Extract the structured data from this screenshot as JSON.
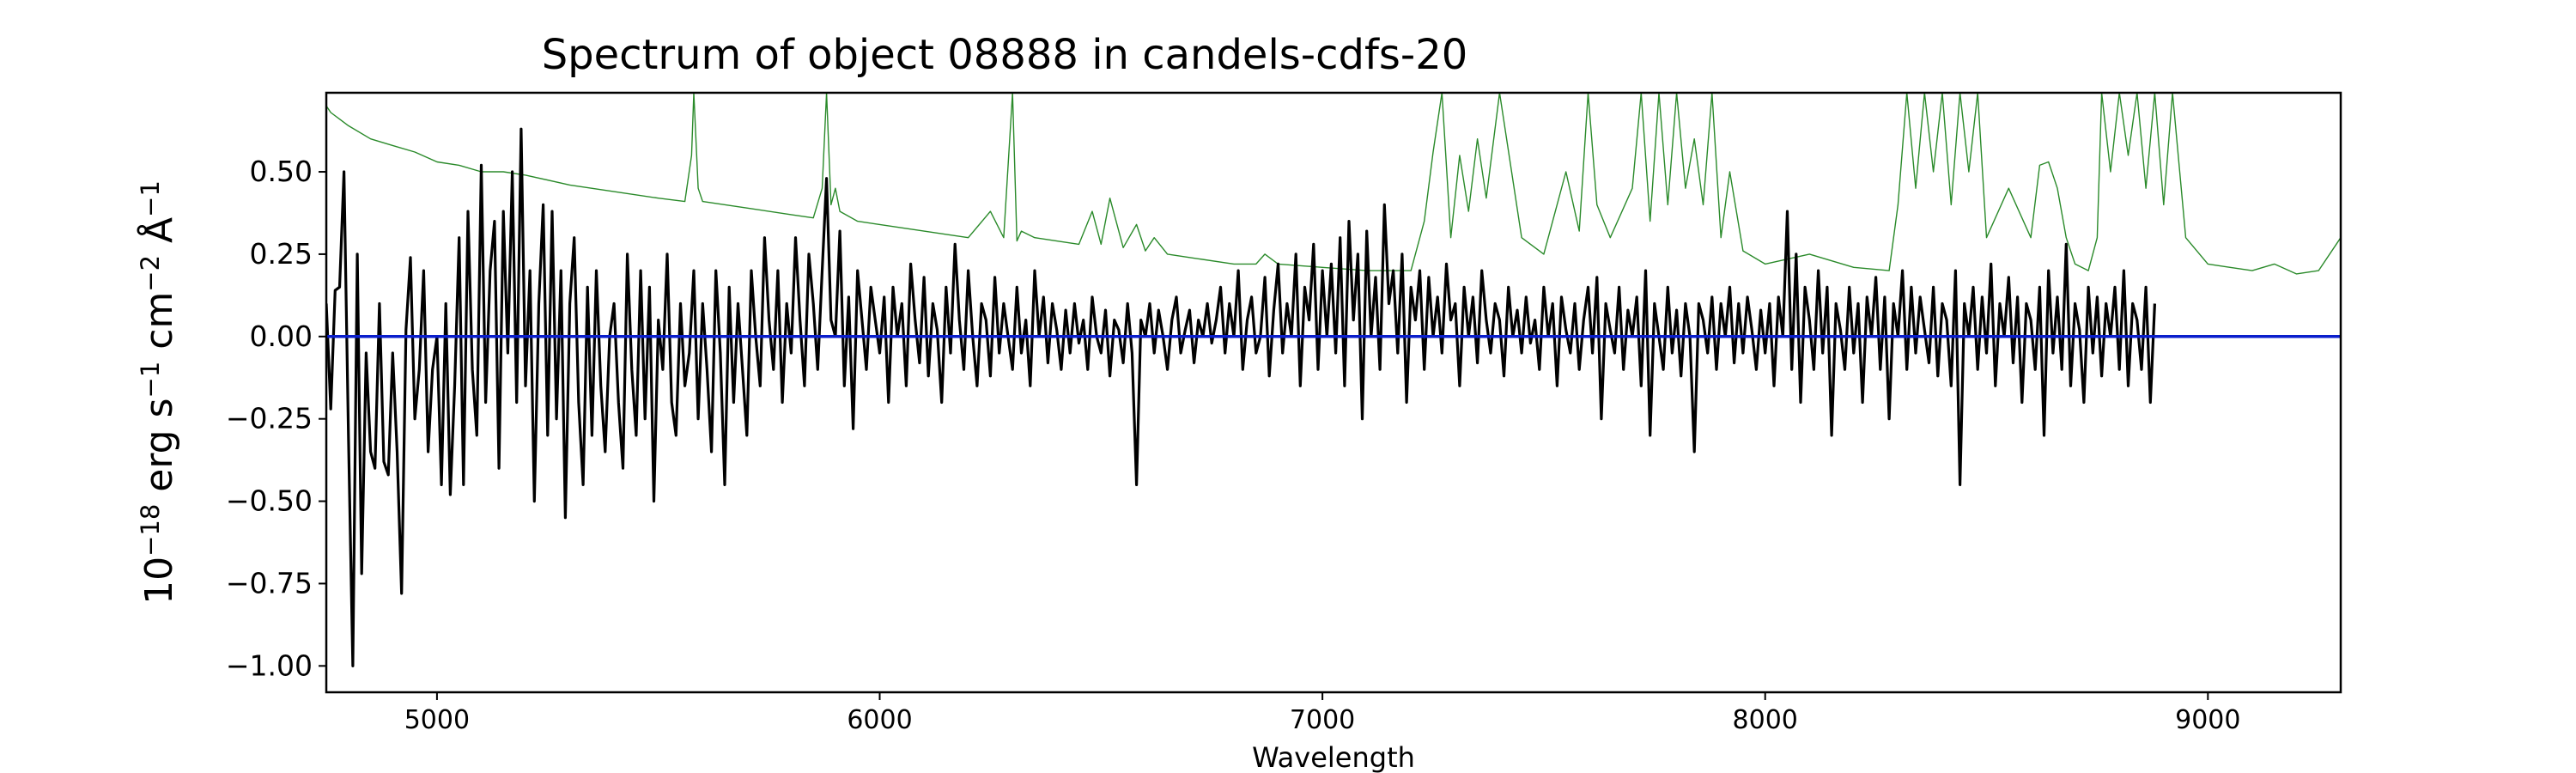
{
  "chart_data": {
    "type": "line",
    "title": "Spectrum of object 08888 in candels-cdfs-20",
    "xlabel": "Wavelength",
    "ylabel": "10^-18 erg s^-1 cm^-2 Å^-1",
    "ylabel_parts": {
      "base": "10",
      "exp_a": "−18",
      "unit_erg": " erg s",
      "exp_b": "−1",
      "unit_cm": " cm",
      "exp_c": "−2",
      "unit_angstrom": " Å",
      "exp_d": "−1"
    },
    "xlim": [
      4750,
      9300
    ],
    "ylim": [
      -1.08,
      0.74
    ],
    "xticks": [
      5000,
      6000,
      7000,
      8000,
      9000
    ],
    "xtick_labels": [
      "5000",
      "6000",
      "7000",
      "8000",
      "9000"
    ],
    "yticks": [
      -1.0,
      -0.75,
      -0.5,
      -0.25,
      0.0,
      0.25,
      0.5
    ],
    "ytick_labels": [
      "−1.00",
      "−0.75",
      "−0.50",
      "−0.25",
      "0.00",
      "0.25",
      "0.50"
    ],
    "grid": false,
    "legend": "none",
    "series": [
      {
        "role": "contamination",
        "color": "#2a8a2a",
        "x": [
          4750,
          4760,
          4780,
          4800,
          4850,
          4900,
          4950,
          5000,
          5050,
          5100,
          5150,
          5200,
          5300,
          5400,
          5500,
          5560,
          5575,
          5580,
          5590,
          5600,
          5700,
          5800,
          5850,
          5870,
          5880,
          5890,
          5900,
          5910,
          5950,
          6000,
          6100,
          6200,
          6250,
          6280,
          6300,
          6310,
          6320,
          6350,
          6400,
          6450,
          6480,
          6500,
          6520,
          6550,
          6580,
          6600,
          6620,
          6650,
          6700,
          6800,
          6850,
          6870,
          6900,
          7000,
          7100,
          7200,
          7230,
          7250,
          7270,
          7290,
          7310,
          7330,
          7350,
          7370,
          7400,
          7450,
          7500,
          7550,
          7580,
          7600,
          7620,
          7650,
          7700,
          7720,
          7740,
          7760,
          7780,
          7800,
          7820,
          7840,
          7860,
          7880,
          7900,
          7920,
          7950,
          8000,
          8100,
          8200,
          8280,
          8300,
          8320,
          8340,
          8360,
          8380,
          8400,
          8420,
          8440,
          8460,
          8480,
          8500,
          8550,
          8600,
          8620,
          8640,
          8660,
          8680,
          8700,
          8730,
          8750,
          8760,
          8780,
          8800,
          8820,
          8840,
          8860,
          8880,
          8900,
          8920,
          8950,
          9000,
          9050,
          9100,
          9150,
          9200,
          9250,
          9300
        ],
        "y": [
          0.7,
          0.68,
          0.66,
          0.64,
          0.6,
          0.58,
          0.56,
          0.53,
          0.52,
          0.5,
          0.5,
          0.49,
          0.46,
          0.44,
          0.42,
          0.41,
          0.55,
          0.74,
          0.45,
          0.41,
          0.39,
          0.37,
          0.36,
          0.45,
          0.74,
          0.4,
          0.45,
          0.38,
          0.35,
          0.34,
          0.32,
          0.3,
          0.38,
          0.3,
          0.74,
          0.29,
          0.32,
          0.3,
          0.29,
          0.28,
          0.38,
          0.28,
          0.42,
          0.27,
          0.34,
          0.26,
          0.3,
          0.25,
          0.24,
          0.22,
          0.22,
          0.25,
          0.22,
          0.21,
          0.2,
          0.2,
          0.35,
          0.56,
          0.74,
          0.3,
          0.55,
          0.38,
          0.6,
          0.42,
          0.74,
          0.3,
          0.25,
          0.5,
          0.32,
          0.74,
          0.4,
          0.3,
          0.45,
          0.74,
          0.35,
          0.74,
          0.4,
          0.74,
          0.45,
          0.6,
          0.4,
          0.74,
          0.3,
          0.5,
          0.26,
          0.22,
          0.25,
          0.21,
          0.2,
          0.4,
          0.74,
          0.45,
          0.74,
          0.5,
          0.74,
          0.4,
          0.74,
          0.5,
          0.74,
          0.3,
          0.45,
          0.3,
          0.52,
          0.53,
          0.45,
          0.3,
          0.22,
          0.2,
          0.3,
          0.74,
          0.5,
          0.74,
          0.55,
          0.74,
          0.45,
          0.74,
          0.4,
          0.74,
          0.3,
          0.22,
          0.21,
          0.2,
          0.22,
          0.19,
          0.2,
          0.3
        ]
      },
      {
        "role": "flux",
        "color": "#000000",
        "x_start": 4750,
        "x_step": 10,
        "y": [
          0.1,
          -0.22,
          0.14,
          0.15,
          0.5,
          -0.3,
          -1.0,
          0.25,
          -0.72,
          -0.05,
          -0.35,
          -0.4,
          0.1,
          -0.38,
          -0.42,
          -0.05,
          -0.35,
          -0.78,
          0.02,
          0.24,
          -0.25,
          -0.1,
          0.2,
          -0.35,
          -0.1,
          0.0,
          -0.45,
          0.1,
          -0.48,
          -0.15,
          0.3,
          -0.45,
          0.38,
          -0.1,
          -0.3,
          0.52,
          -0.2,
          0.2,
          0.35,
          -0.4,
          0.38,
          -0.05,
          0.5,
          -0.2,
          0.63,
          -0.15,
          0.2,
          -0.5,
          0.1,
          0.4,
          -0.3,
          0.38,
          -0.25,
          0.2,
          -0.55,
          0.1,
          0.3,
          -0.2,
          -0.45,
          0.15,
          -0.3,
          0.2,
          -0.15,
          -0.35,
          0.0,
          0.1,
          -0.2,
          -0.4,
          0.25,
          -0.1,
          -0.3,
          0.2,
          -0.25,
          0.15,
          -0.5,
          0.05,
          -0.1,
          0.25,
          -0.2,
          -0.3,
          0.1,
          -0.15,
          -0.05,
          0.2,
          -0.25,
          0.1,
          -0.1,
          -0.35,
          0.2,
          -0.05,
          -0.45,
          0.15,
          -0.2,
          0.1,
          -0.1,
          -0.3,
          0.2,
          0.0,
          -0.15,
          0.3,
          0.05,
          -0.1,
          0.2,
          -0.2,
          0.1,
          -0.05,
          0.3,
          0.05,
          -0.15,
          0.25,
          0.1,
          -0.1,
          0.2,
          0.48,
          0.05,
          0.0,
          0.32,
          -0.15,
          0.12,
          -0.28,
          0.2,
          0.05,
          -0.1,
          0.15,
          0.05,
          -0.05,
          0.12,
          -0.2,
          0.15,
          0.0,
          0.1,
          -0.15,
          0.22,
          0.05,
          -0.08,
          0.18,
          -0.12,
          0.1,
          0.02,
          -0.2,
          0.15,
          -0.05,
          0.28,
          0.05,
          -0.1,
          0.2,
          0.0,
          -0.15,
          0.1,
          0.05,
          -0.12,
          0.18,
          -0.05,
          0.1,
          0.0,
          -0.1,
          0.15,
          -0.05,
          0.05,
          -0.15,
          0.2,
          0.0,
          0.12,
          -0.08,
          0.1,
          0.02,
          -0.1,
          0.08,
          -0.05,
          0.1,
          -0.02,
          0.05,
          -0.1,
          0.12,
          0.0,
          -0.05,
          0.08,
          -0.12,
          0.05,
          0.02,
          -0.08,
          0.1,
          -0.05,
          -0.45,
          0.05,
          0.0,
          0.1,
          -0.05,
          0.08,
          0.0,
          -0.1,
          0.05,
          0.12,
          -0.05,
          0.02,
          0.08,
          -0.08,
          0.05,
          0.0,
          0.1,
          -0.02,
          0.05,
          0.15,
          -0.05,
          0.1,
          0.0,
          0.2,
          -0.1,
          0.05,
          0.12,
          -0.05,
          0.0,
          0.18,
          -0.12,
          0.08,
          0.22,
          -0.05,
          0.1,
          0.0,
          0.25,
          -0.15,
          0.15,
          0.05,
          0.28,
          -0.1,
          0.2,
          0.0,
          0.22,
          -0.05,
          0.3,
          -0.15,
          0.35,
          0.05,
          0.25,
          -0.25,
          0.32,
          0.0,
          0.18,
          -0.1,
          0.4,
          0.1,
          0.2,
          -0.05,
          0.25,
          -0.2,
          0.15,
          0.05,
          0.2,
          -0.1,
          0.18,
          0.0,
          0.12,
          -0.05,
          0.22,
          0.05,
          0.1,
          -0.15,
          0.15,
          0.0,
          0.12,
          -0.08,
          0.2,
          0.05,
          -0.05,
          0.1,
          0.05,
          -0.12,
          0.15,
          0.0,
          0.08,
          -0.05,
          0.12,
          -0.02,
          0.05,
          -0.1,
          0.15,
          0.0,
          0.1,
          -0.15,
          0.12,
          0.02,
          -0.05,
          0.1,
          -0.1,
          0.05,
          0.15,
          -0.05,
          0.18,
          -0.25,
          0.1,
          0.02,
          -0.05,
          0.15,
          -0.1,
          0.08,
          0.0,
          0.12,
          -0.15,
          0.2,
          -0.3,
          0.1,
          0.0,
          -0.1,
          0.15,
          -0.05,
          0.08,
          -0.12,
          0.1,
          0.0,
          -0.35,
          0.1,
          0.05,
          -0.05,
          0.12,
          -0.1,
          0.1,
          0.0,
          0.15,
          -0.08,
          0.1,
          -0.05,
          0.12,
          0.02,
          -0.1,
          0.08,
          -0.05,
          0.1,
          -0.15,
          0.12,
          0.0,
          0.38,
          -0.1,
          0.25,
          -0.2,
          0.15,
          0.05,
          -0.1,
          0.2,
          -0.05,
          0.15,
          -0.3,
          0.1,
          0.02,
          -0.1,
          0.15,
          -0.05,
          0.1,
          -0.2,
          0.12,
          0.0,
          0.18,
          -0.1,
          0.12,
          -0.25,
          0.1,
          0.0,
          0.2,
          -0.1,
          0.15,
          -0.05,
          0.12,
          0.02,
          -0.08,
          0.15,
          -0.12,
          0.1,
          0.05,
          -0.15,
          0.2,
          -0.45,
          0.1,
          0.0,
          0.15,
          -0.1,
          0.12,
          -0.05,
          0.22,
          -0.15,
          0.1,
          0.0,
          0.18,
          -0.08,
          0.12,
          -0.2,
          0.1,
          0.05,
          -0.1,
          0.15,
          -0.3,
          0.2,
          -0.05,
          0.12,
          -0.1,
          0.28,
          -0.15,
          0.1,
          0.02,
          -0.2,
          0.15,
          -0.05,
          0.12,
          -0.12,
          0.1,
          0.0,
          0.15,
          -0.1,
          0.2,
          -0.15,
          0.1,
          0.05,
          -0.1,
          0.15,
          -0.2,
          0.1
        ]
      },
      {
        "role": "zero-model",
        "color": "#0a1ecc",
        "x": [
          4750,
          9300
        ],
        "y": [
          0.0,
          0.0
        ]
      }
    ]
  }
}
